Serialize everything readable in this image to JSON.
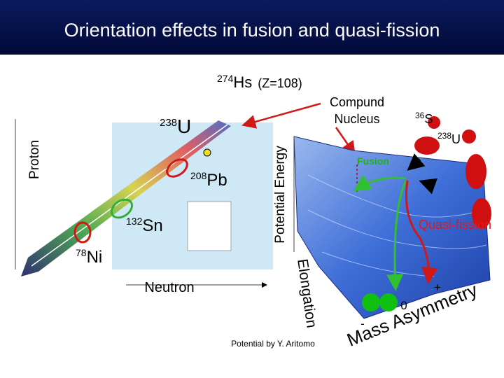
{
  "title": "Orientation effects in fusion and quasi-fission",
  "compound_nucleus": {
    "mass": "274",
    "symbol": "Hs",
    "charge": "(Z=108)",
    "label": [
      "Compund",
      "Nucleus"
    ]
  },
  "nuclide_chart": {
    "y_axis": "Proton",
    "x_axis": "Neutron",
    "nuclei": [
      {
        "mass": "238",
        "symbol": "U"
      },
      {
        "mass": "208",
        "symbol": "Pb"
      },
      {
        "mass": "132",
        "symbol": "Sn"
      },
      {
        "mass": "78",
        "symbol": "Ni"
      }
    ]
  },
  "potential_surface": {
    "z_axis": "Potential Energy",
    "elongation_axis": "Elongation",
    "asymmetry_axis": "Mass Asymmetry",
    "asymmetry_ticks": [
      "+",
      "0",
      "-"
    ],
    "projectile": {
      "mass": "36",
      "symbol": "S"
    },
    "target": {
      "mass": "238",
      "symbol": "U"
    },
    "paths": [
      "Fusion",
      "Quasi-fission"
    ],
    "credit": "Potential by Y. Aritomo"
  }
}
